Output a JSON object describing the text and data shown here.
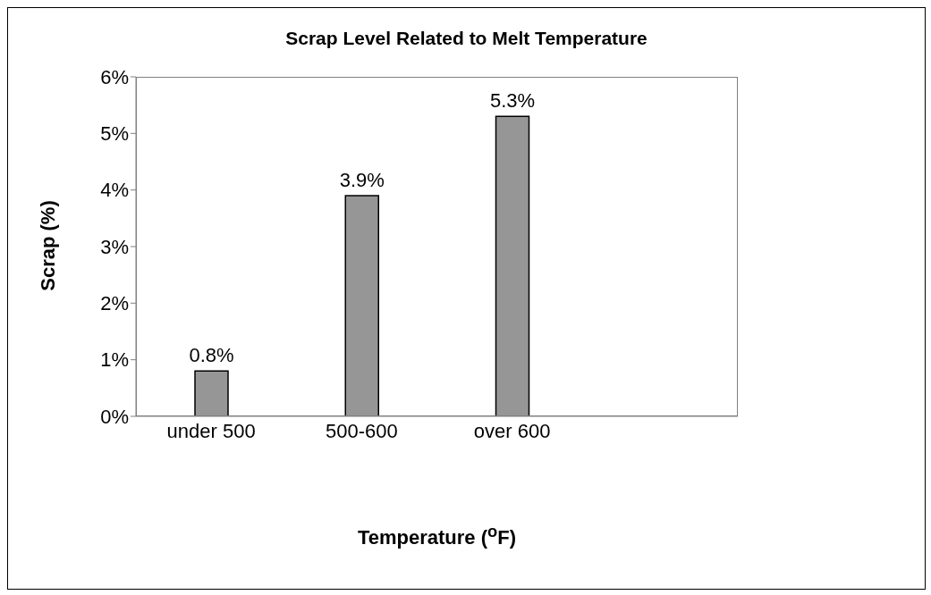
{
  "chart_data": {
    "type": "bar",
    "title": "Scrap Level Related to Melt Temperature",
    "xlabel": "Temperature ($^{o}$F)",
    "ylabel": "Scrap (%)",
    "categories": [
      "under 500",
      "500-600",
      "over 600",
      null
    ],
    "values": [
      0.8,
      3.9,
      5.3,
      null
    ],
    "value_labels": [
      "0.8%",
      "3.9%",
      "5.3%",
      null
    ],
    "color": "#969696",
    "ylim": [
      0,
      6
    ],
    "yticks": [
      {
        "value": 0,
        "label": "0%"
      },
      {
        "value": 1,
        "label": "1%"
      },
      {
        "value": 2,
        "label": "2%"
      },
      {
        "value": 3,
        "label": "3%"
      },
      {
        "value": 4,
        "label": "4%"
      },
      {
        "value": 5,
        "label": "5%"
      },
      {
        "value": 6,
        "label": "6%"
      }
    ],
    "grid": false,
    "legend": false
  }
}
